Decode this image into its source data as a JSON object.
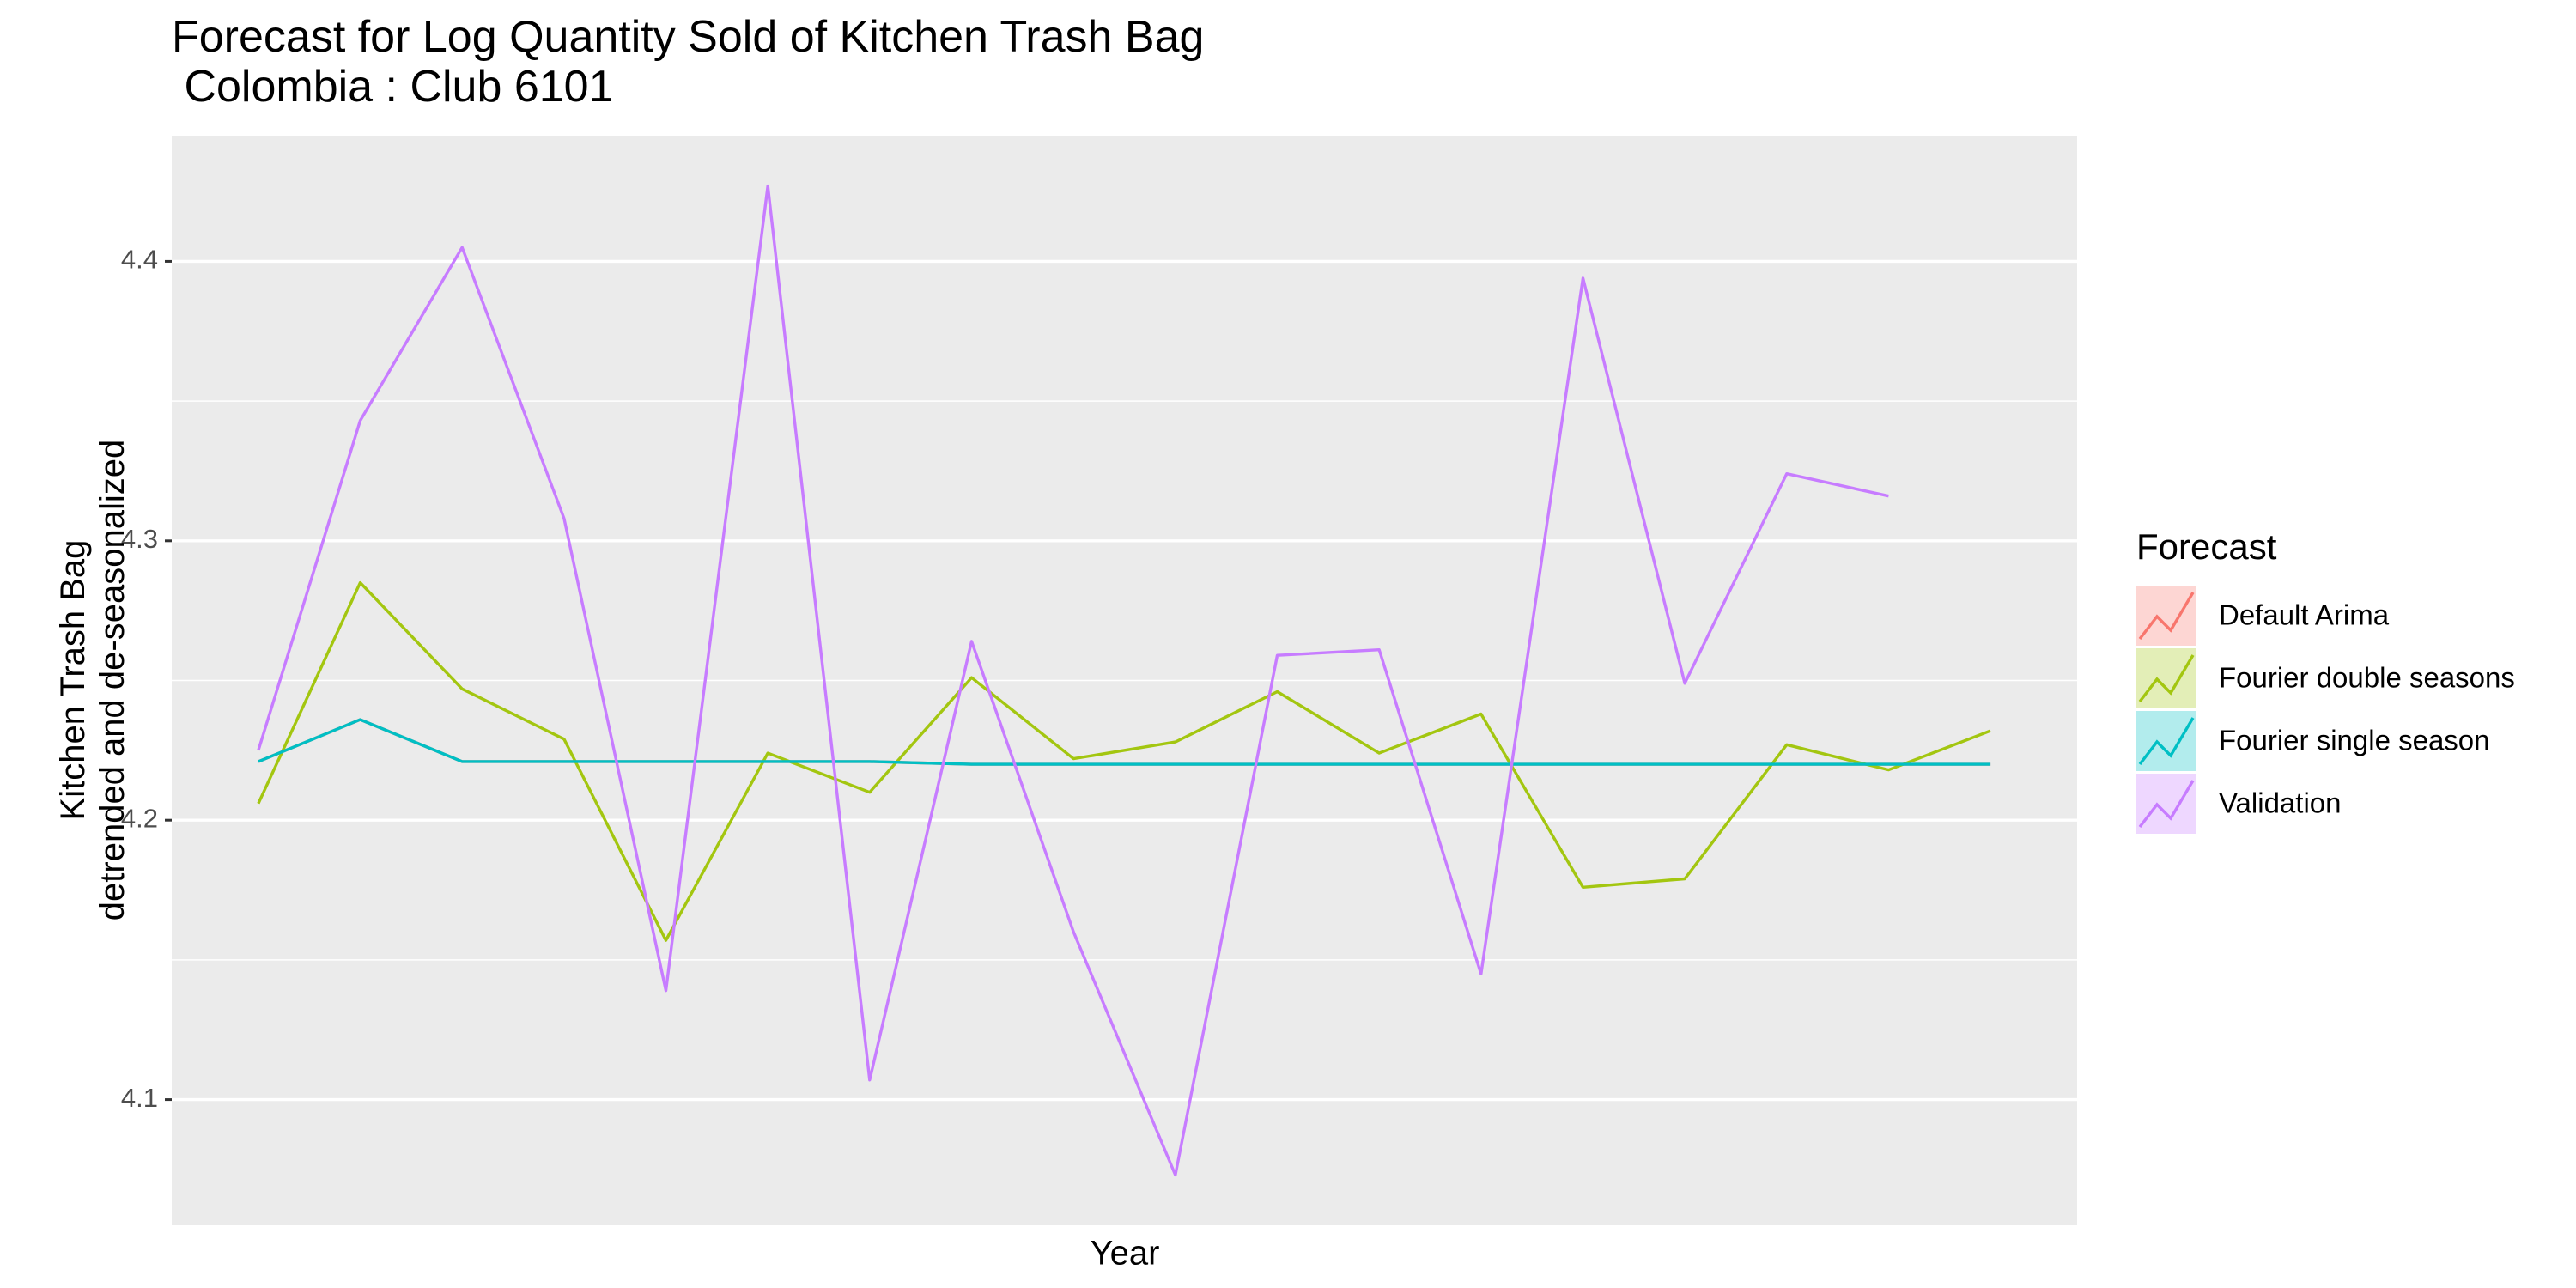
{
  "chart_data": {
    "type": "line",
    "title": "Forecast for Log Quantity Sold of Kitchen Trash Bag\n Colombia : Club 6101",
    "x_label": "Year",
    "y_label": "Kitchen Trash Bag\ndetrended and de-seasonalized",
    "legend_title": "Forecast",
    "legend_position": "right",
    "categories": [
      null,
      null,
      null,
      null,
      null,
      null,
      null,
      null,
      null,
      null,
      null,
      null,
      null,
      null,
      null,
      null,
      null,
      null
    ],
    "ylim": [
      4.055,
      4.445
    ],
    "yticks": [
      4.1,
      4.2,
      4.3,
      4.4
    ],
    "yminorticks": [
      4.15,
      4.25,
      4.35
    ],
    "grid": true,
    "series": [
      {
        "name": "Default Arima",
        "color": "#F8766D",
        "values": [
          4.221,
          4.236,
          4.221,
          4.221,
          4.221,
          4.221,
          4.221,
          4.22,
          4.22,
          4.22,
          4.22,
          4.22,
          4.22,
          4.22,
          4.22,
          4.22,
          4.22,
          4.22
        ]
      },
      {
        "name": "Fourier double seasons",
        "color": "#A3C610",
        "values": [
          4.206,
          4.285,
          4.247,
          4.229,
          4.157,
          4.224,
          4.21,
          4.251,
          4.222,
          4.228,
          4.246,
          4.224,
          4.238,
          4.176,
          4.179,
          4.227,
          4.218,
          4.232
        ]
      },
      {
        "name": "Fourier single season",
        "color": "#00BFC4",
        "values": [
          4.221,
          4.236,
          4.221,
          4.221,
          4.221,
          4.221,
          4.221,
          4.22,
          4.22,
          4.22,
          4.22,
          4.22,
          4.22,
          4.22,
          4.22,
          4.22,
          4.22,
          4.22
        ]
      },
      {
        "name": "Validation",
        "color": "#C77CFF",
        "values": [
          4.225,
          4.343,
          4.405,
          4.308,
          4.139,
          4.427,
          4.107,
          4.264,
          4.16,
          4.073,
          4.259,
          4.261,
          4.145,
          4.394,
          4.249,
          4.324,
          4.316,
          null
        ]
      }
    ]
  }
}
